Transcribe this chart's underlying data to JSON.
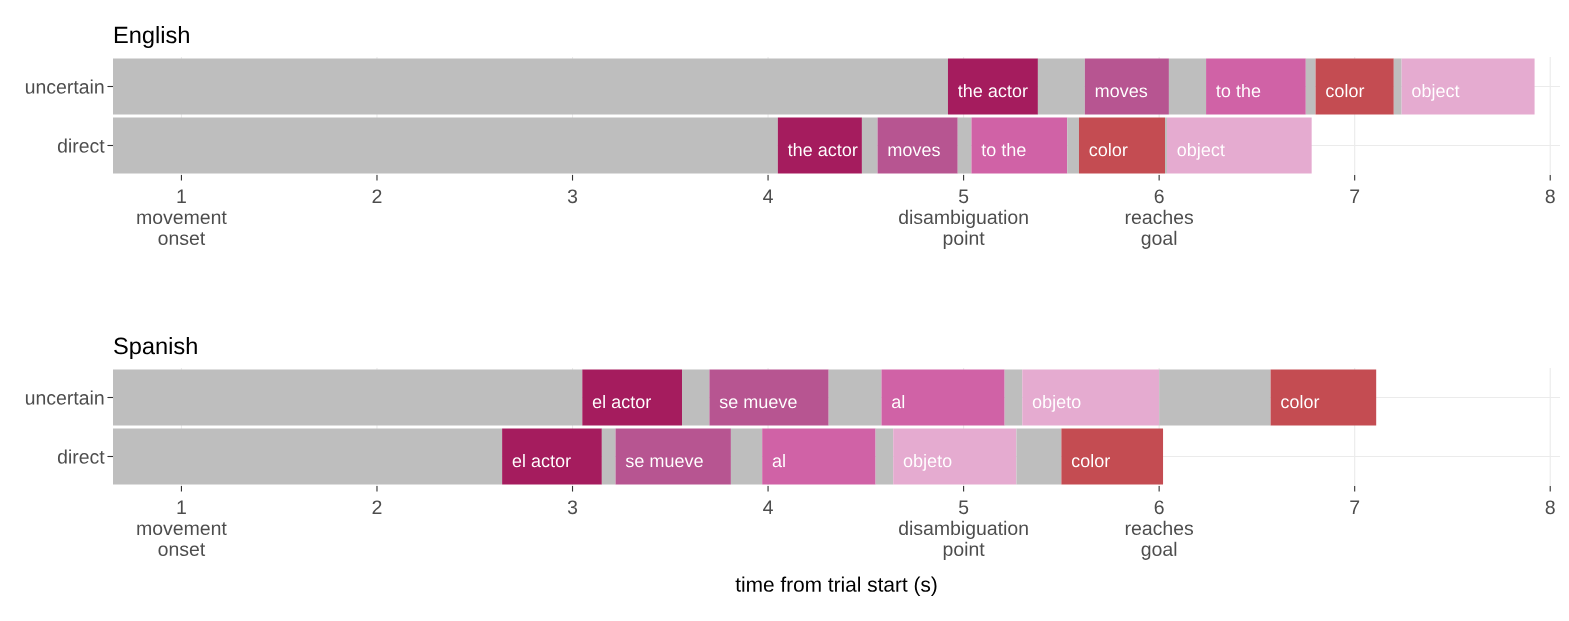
{
  "chart_data": [
    {
      "type": "bar",
      "orientation": "horizontal",
      "title": "English",
      "categories": [
        "uncertain",
        "direct"
      ],
      "grid": true,
      "legend": false,
      "xlim": [
        0.65,
        8.05
      ],
      "xticks": [
        {
          "value": 1,
          "label": "1\nmovement\nonset"
        },
        2,
        3,
        4,
        {
          "value": 5,
          "label": "5\ndisambiguation\npoint"
        },
        {
          "value": 6,
          "label": "6\nreaches\ngoal"
        },
        7,
        8
      ],
      "series": [
        {
          "color": "#bebebe",
          "base": [
            0.65,
            0.65
          ],
          "values": [
            4.27,
            3.4
          ]
        },
        {
          "name": "the actor",
          "color": "#a51c5e",
          "base": [
            4.92,
            4.05
          ],
          "values": [
            0.46,
            0.43
          ]
        },
        {
          "color": "#bebebe",
          "base": [
            5.38,
            4.48
          ],
          "values": [
            0.24,
            0.08
          ]
        },
        {
          "name": "moves",
          "color": "#b75591",
          "base": [
            5.62,
            4.56
          ],
          "values": [
            0.43,
            0.41
          ]
        },
        {
          "color": "#bebebe",
          "base": [
            6.05,
            4.97
          ],
          "values": [
            0.19,
            0.07
          ]
        },
        {
          "name": "to the",
          "color": "#d062a6",
          "base": [
            6.24,
            5.04
          ],
          "values": [
            0.51,
            0.49
          ]
        },
        {
          "color": "#bebebe",
          "base": [
            6.75,
            5.53
          ],
          "values": [
            0.05,
            0.06
          ]
        },
        {
          "name": "color",
          "color": "#c44c52",
          "base": [
            6.8,
            5.59
          ],
          "values": [
            0.4,
            0.44
          ]
        },
        {
          "color": "#bebebe",
          "base": [
            7.2,
            6.03
          ],
          "values": [
            0.04,
            0.01
          ]
        },
        {
          "name": "object",
          "color": "#e5abd0",
          "base": [
            7.24,
            6.04
          ],
          "values": [
            0.68,
            0.74
          ]
        }
      ]
    },
    {
      "type": "bar",
      "orientation": "horizontal",
      "title": "Spanish",
      "xlabel": "time from trial start (s)",
      "categories": [
        "uncertain",
        "direct"
      ],
      "grid": true,
      "legend": false,
      "xlim": [
        0.65,
        8.05
      ],
      "xticks": [
        {
          "value": 1,
          "label": "1\nmovement\nonset"
        },
        2,
        3,
        4,
        {
          "value": 5,
          "label": "5\ndisambiguation\npoint"
        },
        {
          "value": 6,
          "label": "6\nreaches\ngoal"
        },
        7,
        8
      ],
      "series": [
        {
          "color": "#bebebe",
          "base": [
            0.65,
            0.65
          ],
          "values": [
            2.4,
            1.99
          ]
        },
        {
          "name": "el actor",
          "color": "#a51c5e",
          "base": [
            3.05,
            2.64
          ],
          "values": [
            0.51,
            0.51
          ]
        },
        {
          "color": "#bebebe",
          "base": [
            3.56,
            3.15
          ],
          "values": [
            0.14,
            0.07
          ]
        },
        {
          "name": "se mueve",
          "color": "#b75591",
          "base": [
            3.7,
            3.22
          ],
          "values": [
            0.61,
            0.59
          ]
        },
        {
          "color": "#bebebe",
          "base": [
            4.31,
            3.81
          ],
          "values": [
            0.27,
            0.16
          ]
        },
        {
          "name": "al",
          "color": "#d062a6",
          "base": [
            4.58,
            3.97
          ],
          "values": [
            0.63,
            0.58
          ]
        },
        {
          "color": "#bebebe",
          "base": [
            5.21,
            4.55
          ],
          "values": [
            0.09,
            0.09
          ]
        },
        {
          "name": "objeto",
          "color": "#e5abd0",
          "base": [
            5.3,
            4.64
          ],
          "values": [
            0.7,
            0.63
          ]
        },
        {
          "color": "#bebebe",
          "base": [
            6.0,
            5.27
          ],
          "values": [
            0.57,
            0.23
          ]
        },
        {
          "name": "color",
          "color": "#c44c52",
          "base": [
            6.57,
            5.5
          ],
          "values": [
            0.54,
            0.52
          ]
        }
      ]
    }
  ]
}
